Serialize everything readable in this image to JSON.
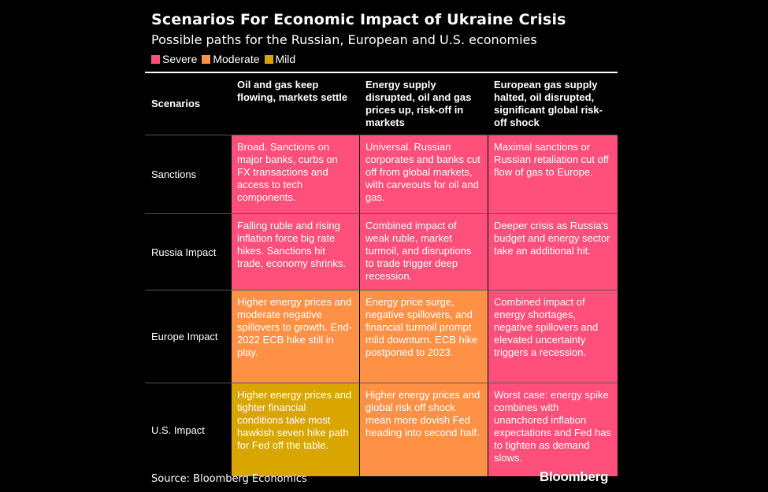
{
  "title": "Scenarios For Economic Impact of Ukraine Crisis",
  "subtitle": "Possible paths for the Russian, European and U.S. economies",
  "legend": [
    {
      "label": "Severe",
      "color": "#ff4f7a"
    },
    {
      "label": "Moderate",
      "color": "#ff9147"
    },
    {
      "label": "Mild",
      "color": "#d9a600"
    }
  ],
  "chart_data": {
    "type": "table",
    "headers": [
      "Scenarios",
      "Oil and gas keep flowing, markets settle",
      "Energy supply disrupted, oil and gas prices up, risk-off in markets",
      "European gas supply halted, oil disrupted, significant global risk-off shock"
    ],
    "rows": [
      {
        "label": "Sanctions",
        "cells": [
          {
            "text": "Broad. Sanctions on major banks, curbs on FX transactions and access to tech components.",
            "severity": "Severe"
          },
          {
            "text": "Universal. Russian corporates and banks cut off from global markets, with carveouts for oil and gas.",
            "severity": "Severe"
          },
          {
            "text": "Maximal sanctions or Russian retaliation cut off flow of gas to Europe.",
            "severity": "Severe"
          }
        ]
      },
      {
        "label": "Russia Impact",
        "cells": [
          {
            "text": "Falling ruble and rising inflation force big rate hikes. Sanctions hit trade, economy shrinks.",
            "severity": "Severe"
          },
          {
            "text": "Combined impact of weak ruble, market turmoil, and disruptions to trade trigger deep recession.",
            "severity": "Severe"
          },
          {
            "text": "Deeper crisis as Russia's budget and energy sector take an additional hit.",
            "severity": "Severe"
          }
        ]
      },
      {
        "label": "Europe Impact",
        "cells": [
          {
            "text": "Higher energy prices and moderate negative spillovers to growth. End-2022 ECB hike still in play.",
            "severity": "Moderate"
          },
          {
            "text": "Energy price surge, negative spillovers, and financial turmoil prompt mild downturn. ECB hike postponed to 2023.",
            "severity": "Moderate"
          },
          {
            "text": "Combined impact of energy shortages, negative spillovers and elevated uncertainty triggers a recession.",
            "severity": "Severe"
          }
        ]
      },
      {
        "label": "U.S. Impact",
        "cells": [
          {
            "text": "Higher energy prices and tighter financial conditions take most hawkish seven hike path for Fed off the table.",
            "severity": "Mild"
          },
          {
            "text": "Higher energy prices and global risk off shock mean more dovish Fed heading into second half.",
            "severity": "Moderate"
          },
          {
            "text": "Worst case: energy spike combines with unanchored inflation expectations and Fed has to tighten as demand slows.",
            "severity": "Severe"
          }
        ]
      }
    ]
  },
  "footer": {
    "source": "Source: Bloomberg Economics",
    "logo": "Bloomberg"
  }
}
